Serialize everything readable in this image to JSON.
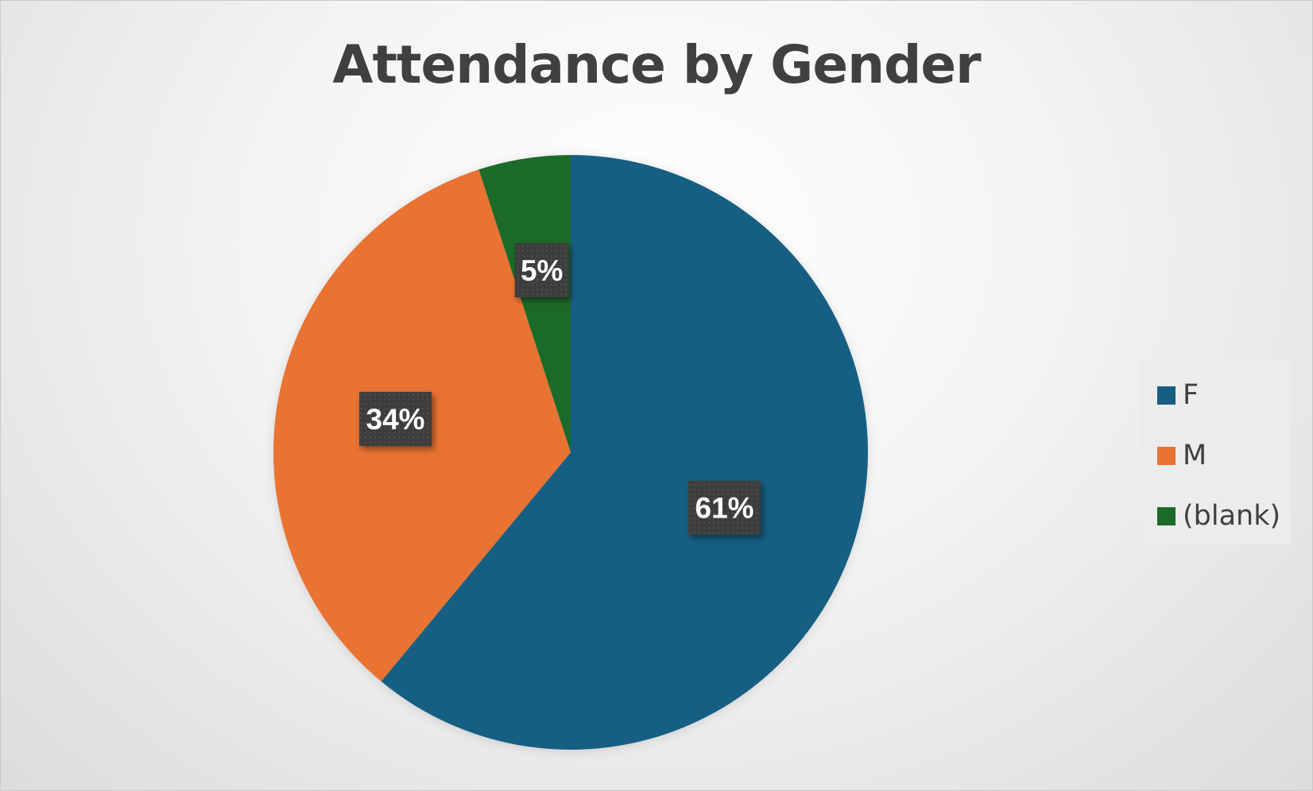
{
  "chart_data": {
    "type": "pie",
    "title": "Attendance by Gender",
    "categories": [
      "F",
      "M",
      "(blank)"
    ],
    "values": [
      61,
      34,
      5
    ],
    "labels": [
      "61%",
      "34%",
      "5%"
    ],
    "colors": [
      "#175E83",
      "#E97333",
      "#1B6A2A"
    ],
    "legend_position": "right"
  },
  "colors": {
    "label_background": "#3d3d3d",
    "label_text": "#ffffff"
  }
}
